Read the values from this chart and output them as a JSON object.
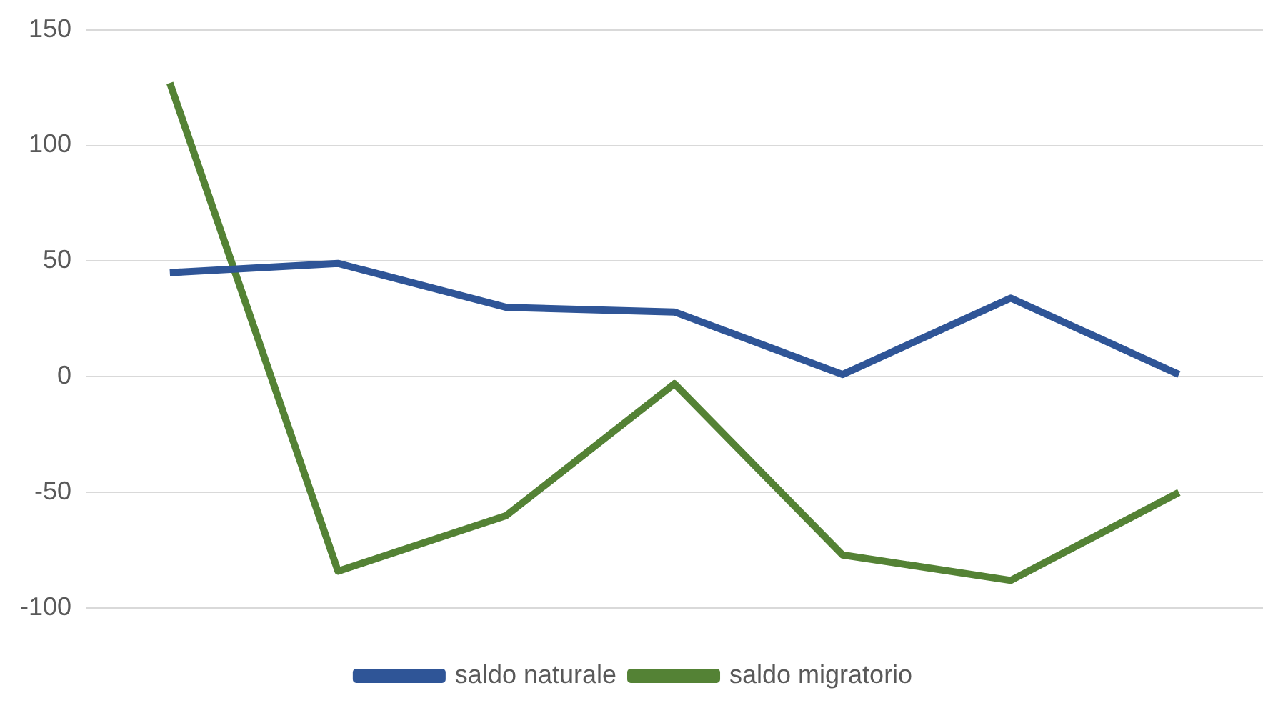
{
  "chart_data": {
    "type": "line",
    "categories": [
      null,
      null,
      null,
      null,
      null,
      null,
      null
    ],
    "series": [
      {
        "name": "saldo naturale",
        "color": "#2f5597",
        "values": [
          45,
          49,
          30,
          28,
          1,
          34,
          1
        ]
      },
      {
        "name": "saldo migratorio",
        "color": "#548235",
        "values": [
          127,
          -84,
          -60,
          -3,
          -77,
          -88,
          -50
        ]
      }
    ],
    "ylim": [
      -100,
      150
    ],
    "yticks": [
      -100,
      -50,
      0,
      50,
      100,
      150
    ],
    "grid": "y",
    "legend": "bottom",
    "marker": "none",
    "line_style": "solid"
  }
}
